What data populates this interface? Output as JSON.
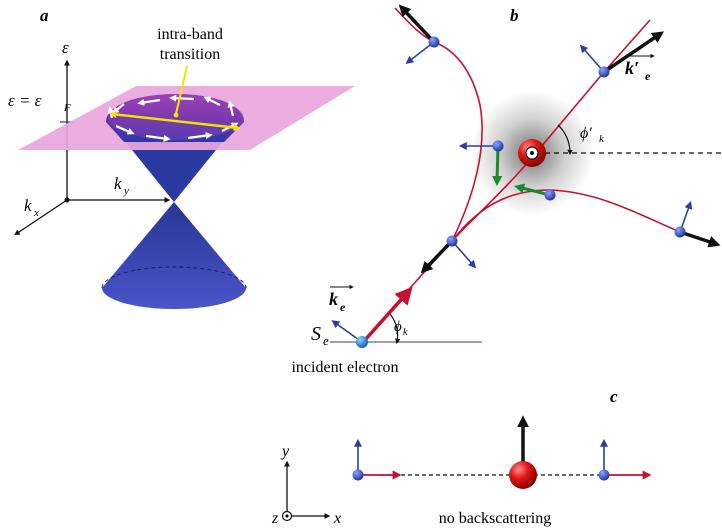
{
  "panels": {
    "a": {
      "letter": "a",
      "epsilon_axis": "ε",
      "fermi_label": "ε = ε",
      "fermi_sub": "F",
      "transition_line1": "intra-band",
      "transition_line2": "transition",
      "ky_label": "k",
      "ky_sub": "y",
      "kx_label": "k",
      "kx_sub": "x"
    },
    "b": {
      "letter": "b",
      "kprime_label": "k′",
      "kprime_sub": "e",
      "phiprime_label": "ϕ′",
      "phiprime_sub": "k",
      "ke_label": "k",
      "ke_sub": "e",
      "se_label": "S",
      "se_sub": "e",
      "phik_label": "ϕ",
      "phik_sub": "k",
      "incident_label": "incident electron"
    },
    "c": {
      "letter": "c",
      "y_label": "y",
      "z_label": "z",
      "x_label": "x",
      "caption": "no backscattering"
    }
  },
  "colors": {
    "cone_blue": "#3a3fb0",
    "fermi_pink": "#e9a6dd",
    "trajectory_red": "#c8102e",
    "spin_green": "#1a8a2a",
    "transition_yellow": "#f2e600",
    "spin_arrow_blue": "#2a3fa0",
    "impurity_red": "#d81818"
  }
}
